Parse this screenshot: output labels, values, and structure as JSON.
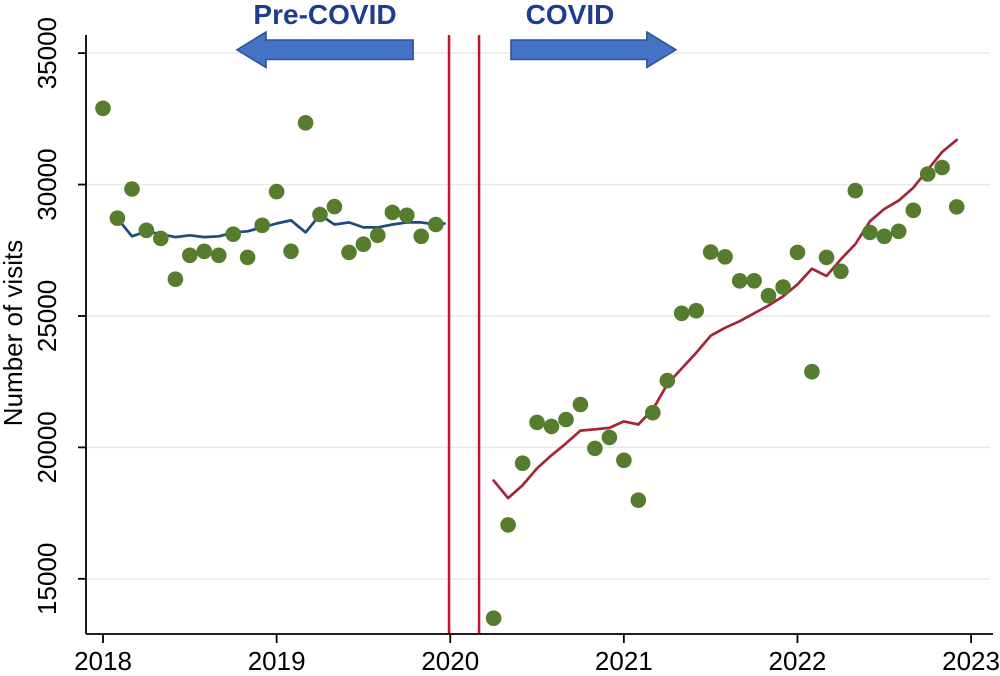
{
  "annotations": {
    "pre_covid": {
      "label": "Pre-COVID",
      "direction": "left"
    },
    "covid": {
      "label": "COVID",
      "direction": "right"
    }
  },
  "colors": {
    "scatter_dot": "#567d2e",
    "pre_covid_trend_line": "#1e4b7e",
    "covid_trend_line": "#a32638",
    "reference_line": "#c41231",
    "arrow_fill": "#4472c4",
    "arrow_border": "#2e5395",
    "annotation_text": "#1f3d8f",
    "gridline": "#e4e9ea",
    "axis": "#000000",
    "tick_text": "#000000"
  },
  "chart_data": {
    "type": "scatter",
    "title": "",
    "xlabel": "",
    "ylabel": "Number of visits",
    "x_ticks": [
      "2018",
      "2019",
      "2020",
      "2021",
      "2022",
      "2023"
    ],
    "x_tick_values": [
      2018,
      2019,
      2020,
      2021,
      2022,
      2023
    ],
    "y_ticks": [
      "15000",
      "20000",
      "25000",
      "30000",
      "35000"
    ],
    "y_tick_values": [
      15000,
      20000,
      25000,
      30000,
      35000
    ],
    "xlim": [
      2017.902,
      2023.109
    ],
    "ylim": [
      12900,
      35690
    ],
    "grid": "horizontal-only",
    "legend": "none",
    "reference_lines_x": [
      2019.993,
      2020.166
    ],
    "series": [
      {
        "name": "monthly_visits_scatter",
        "type": "scatter",
        "points": [
          [
            2018.0,
            32900
          ],
          [
            2018.083,
            28720
          ],
          [
            2018.167,
            29830
          ],
          [
            2018.25,
            28260
          ],
          [
            2018.333,
            27950
          ],
          [
            2018.417,
            26400
          ],
          [
            2018.5,
            27310
          ],
          [
            2018.583,
            27460
          ],
          [
            2018.667,
            27310
          ],
          [
            2018.75,
            28110
          ],
          [
            2018.833,
            27230
          ],
          [
            2018.917,
            28450
          ],
          [
            2019.0,
            29730
          ],
          [
            2019.083,
            27460
          ],
          [
            2019.167,
            32350
          ],
          [
            2019.25,
            28860
          ],
          [
            2019.333,
            29160
          ],
          [
            2019.417,
            27420
          ],
          [
            2019.5,
            27730
          ],
          [
            2019.583,
            28070
          ],
          [
            2019.667,
            28940
          ],
          [
            2019.75,
            28830
          ],
          [
            2019.833,
            28030
          ],
          [
            2019.917,
            28480
          ],
          [
            2020.25,
            13500
          ],
          [
            2020.333,
            17050
          ],
          [
            2020.417,
            19400
          ],
          [
            2020.5,
            20950
          ],
          [
            2020.583,
            20800
          ],
          [
            2020.667,
            21060
          ],
          [
            2020.75,
            21630
          ],
          [
            2020.833,
            19960
          ],
          [
            2020.917,
            20380
          ],
          [
            2021.0,
            19510
          ],
          [
            2021.083,
            17990
          ],
          [
            2021.167,
            21320
          ],
          [
            2021.25,
            22540
          ],
          [
            2021.333,
            25100
          ],
          [
            2021.417,
            25200
          ],
          [
            2021.5,
            27430
          ],
          [
            2021.583,
            27250
          ],
          [
            2021.667,
            26340
          ],
          [
            2021.75,
            26340
          ],
          [
            2021.833,
            25770
          ],
          [
            2021.917,
            26100
          ],
          [
            2022.0,
            27420
          ],
          [
            2022.083,
            22880
          ],
          [
            2022.167,
            27230
          ],
          [
            2022.25,
            26700
          ],
          [
            2022.333,
            29770
          ],
          [
            2022.417,
            28180
          ],
          [
            2022.5,
            28030
          ],
          [
            2022.583,
            28220
          ],
          [
            2022.667,
            29020
          ],
          [
            2022.75,
            30400
          ],
          [
            2022.833,
            30650
          ],
          [
            2022.917,
            29150
          ]
        ]
      },
      {
        "name": "pre_covid_trend",
        "type": "line",
        "points": [
          [
            2018.083,
            28710
          ],
          [
            2018.167,
            28030
          ],
          [
            2018.25,
            28220
          ],
          [
            2018.333,
            28110
          ],
          [
            2018.417,
            28000
          ],
          [
            2018.5,
            28070
          ],
          [
            2018.583,
            28000
          ],
          [
            2018.667,
            28030
          ],
          [
            2018.75,
            28180
          ],
          [
            2018.833,
            28220
          ],
          [
            2018.917,
            28370
          ],
          [
            2019.0,
            28520
          ],
          [
            2019.083,
            28640
          ],
          [
            2019.167,
            28180
          ],
          [
            2019.25,
            28850
          ],
          [
            2019.333,
            28480
          ],
          [
            2019.417,
            28560
          ],
          [
            2019.5,
            28370
          ],
          [
            2019.583,
            28370
          ],
          [
            2019.667,
            28480
          ],
          [
            2019.75,
            28560
          ],
          [
            2019.833,
            28560
          ],
          [
            2019.917,
            28480
          ],
          [
            2019.967,
            28520
          ]
        ]
      },
      {
        "name": "covid_trend",
        "type": "line",
        "points": [
          [
            2020.25,
            18740
          ],
          [
            2020.333,
            18070
          ],
          [
            2020.417,
            18560
          ],
          [
            2020.5,
            19200
          ],
          [
            2020.583,
            19700
          ],
          [
            2020.667,
            20150
          ],
          [
            2020.75,
            20640
          ],
          [
            2020.833,
            20690
          ],
          [
            2020.917,
            20740
          ],
          [
            2021.0,
            20990
          ],
          [
            2021.083,
            20870
          ],
          [
            2021.167,
            21440
          ],
          [
            2021.25,
            22400
          ],
          [
            2021.333,
            23000
          ],
          [
            2021.417,
            23600
          ],
          [
            2021.5,
            24250
          ],
          [
            2021.583,
            24550
          ],
          [
            2021.667,
            24800
          ],
          [
            2021.75,
            25100
          ],
          [
            2021.833,
            25400
          ],
          [
            2021.917,
            25750
          ],
          [
            2022.0,
            26200
          ],
          [
            2022.083,
            26800
          ],
          [
            2022.167,
            26520
          ],
          [
            2022.25,
            27160
          ],
          [
            2022.333,
            27730
          ],
          [
            2022.417,
            28600
          ],
          [
            2022.5,
            29070
          ],
          [
            2022.583,
            29390
          ],
          [
            2022.667,
            29880
          ],
          [
            2022.75,
            30560
          ],
          [
            2022.833,
            31240
          ],
          [
            2022.917,
            31700
          ]
        ]
      }
    ],
    "arrow_annotations": [
      {
        "label": "Pre-COVID",
        "direction": "left",
        "x_start": 2019.786,
        "x_tip": 2018.772,
        "text_center_x": 2019.28
      },
      {
        "label": "COVID",
        "direction": "right",
        "x_start": 2020.35,
        "x_tip": 2021.3,
        "text_center_x": 2020.69
      }
    ]
  }
}
